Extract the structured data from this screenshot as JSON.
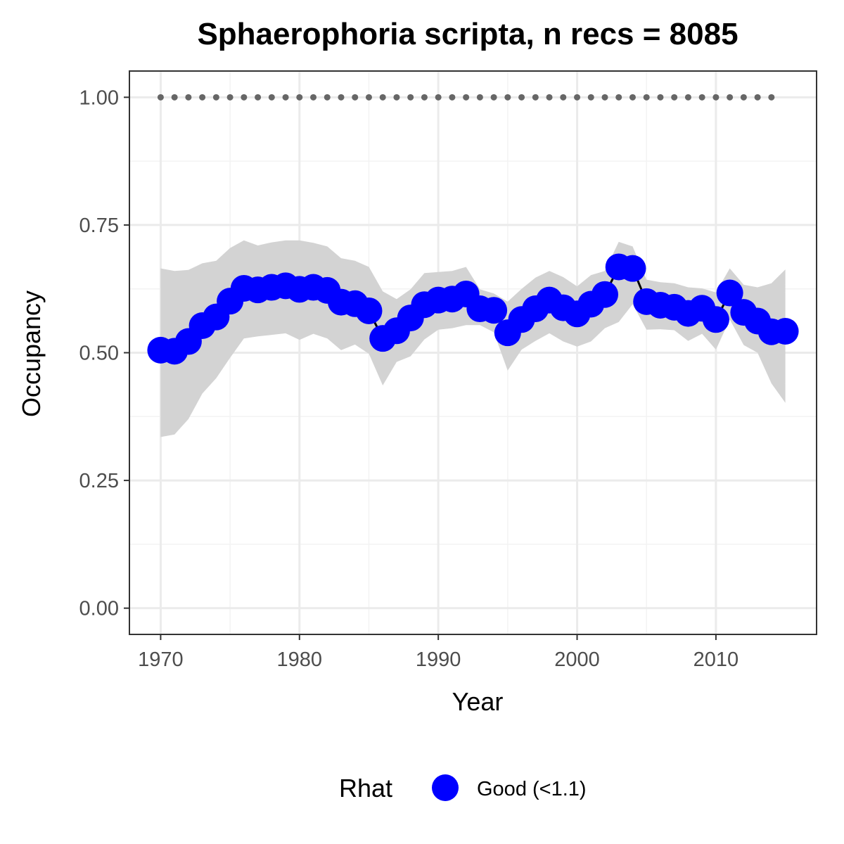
{
  "chart_data": {
    "type": "line",
    "title": "Sphaerophoria scripta, n recs = 8085",
    "xlabel": "Year",
    "ylabel": "Occupancy",
    "xlim": [
      1967.8,
      2017.2
    ],
    "ylim": [
      -0.05,
      1.05
    ],
    "x_ticks": [
      1970,
      1980,
      1990,
      2000,
      2010
    ],
    "y_ticks": [
      0.0,
      0.25,
      0.5,
      0.75,
      1.0
    ],
    "x_tick_labels": [
      "1970",
      "1980",
      "1990",
      "2000",
      "2010"
    ],
    "y_tick_labels": [
      "0.00",
      "0.25",
      "0.50",
      "0.75",
      "1.00"
    ],
    "grid": true,
    "series": [
      {
        "name": "Good (<1.1)",
        "color": "#0000ff",
        "x": [
          1970,
          1971,
          1972,
          1973,
          1974,
          1975,
          1976,
          1977,
          1978,
          1979,
          1980,
          1981,
          1982,
          1983,
          1984,
          1985,
          1986,
          1987,
          1988,
          1989,
          1990,
          1991,
          1992,
          1993,
          1994,
          1995,
          1996,
          1997,
          1998,
          1999,
          2000,
          2001,
          2002,
          2003,
          2004,
          2005,
          2006,
          2007,
          2008,
          2009,
          2010,
          2011,
          2012,
          2013,
          2014,
          2015
        ],
        "y": [
          0.505,
          0.503,
          0.522,
          0.553,
          0.57,
          0.601,
          0.626,
          0.623,
          0.628,
          0.631,
          0.624,
          0.628,
          0.622,
          0.599,
          0.596,
          0.582,
          0.528,
          0.543,
          0.568,
          0.594,
          0.603,
          0.605,
          0.615,
          0.586,
          0.583,
          0.539,
          0.565,
          0.586,
          0.603,
          0.588,
          0.576,
          0.595,
          0.614,
          0.668,
          0.665,
          0.6,
          0.593,
          0.589,
          0.577,
          0.587,
          0.565,
          0.617,
          0.579,
          0.562,
          0.541,
          0.542
        ],
        "lower": [
          0.335,
          0.34,
          0.37,
          0.42,
          0.45,
          0.49,
          0.528,
          0.532,
          0.535,
          0.538,
          0.525,
          0.537,
          0.528,
          0.505,
          0.516,
          0.498,
          0.436,
          0.482,
          0.493,
          0.526,
          0.545,
          0.548,
          0.554,
          0.554,
          0.54,
          0.465,
          0.506,
          0.523,
          0.538,
          0.522,
          0.512,
          0.522,
          0.548,
          0.56,
          0.595,
          0.545,
          0.546,
          0.544,
          0.523,
          0.537,
          0.506,
          0.565,
          0.515,
          0.5,
          0.44,
          0.402
        ],
        "upper": [
          0.665,
          0.66,
          0.662,
          0.675,
          0.68,
          0.705,
          0.72,
          0.71,
          0.716,
          0.72,
          0.72,
          0.715,
          0.708,
          0.685,
          0.68,
          0.668,
          0.62,
          0.605,
          0.624,
          0.656,
          0.658,
          0.66,
          0.668,
          0.624,
          0.616,
          0.6,
          0.625,
          0.647,
          0.66,
          0.648,
          0.63,
          0.652,
          0.66,
          0.717,
          0.708,
          0.643,
          0.638,
          0.636,
          0.628,
          0.626,
          0.618,
          0.665,
          0.633,
          0.628,
          0.636,
          0.663
        ]
      }
    ],
    "reference_line": {
      "x": [
        1970,
        1971,
        1972,
        1973,
        1974,
        1975,
        1976,
        1977,
        1978,
        1979,
        1980,
        1981,
        1982,
        1983,
        1984,
        1985,
        1986,
        1987,
        1988,
        1989,
        1990,
        1991,
        1992,
        1993,
        1994,
        1995,
        1996,
        1997,
        1998,
        1999,
        2000,
        2001,
        2002,
        2003,
        2004,
        2005,
        2006,
        2007,
        2008,
        2009,
        2010,
        2011,
        2012,
        2013,
        2014
      ],
      "y": 1.0,
      "color": "#666666"
    },
    "legend": {
      "title": "Rhat",
      "placement": "bottom",
      "entries": [
        {
          "label": "Good (<1.1)",
          "color": "#0000ff"
        }
      ]
    },
    "colors": {
      "ribbon": "#d3d3d3",
      "line": "#000000",
      "grid_major": "#ebebeb",
      "panel_border": "#333333"
    }
  }
}
